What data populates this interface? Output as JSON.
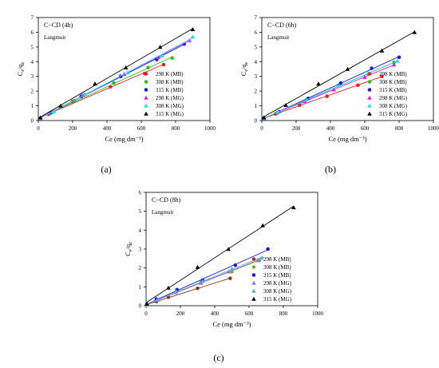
{
  "figure": {
    "panels": [
      "(a)",
      "(b)",
      "(c)"
    ]
  },
  "chart_data": [
    {
      "type": "scatter",
      "panel_label": "(a)",
      "title": "C−CD (4h)",
      "subtitle": "Langmuir",
      "xlabel": "Ce (mg dm⁻³)",
      "ylabel": "Ce/qe",
      "xlim": [
        0,
        1000
      ],
      "ylim": [
        0,
        7
      ],
      "xticks": [
        0,
        200,
        400,
        600,
        800,
        1000
      ],
      "yticks": [
        0,
        1,
        2,
        3,
        4,
        5,
        6,
        7
      ],
      "grid": false,
      "legend_position": "bottom-right",
      "series": [
        {
          "name": "298 K (MB)",
          "color": "#e8211a",
          "marker": "circle",
          "x": [
            12,
            60,
            200,
            420,
            620,
            730
          ],
          "y": [
            0.12,
            0.42,
            1.3,
            2.3,
            3.2,
            3.8
          ]
        },
        {
          "name": "308 K (MB)",
          "color": "#27c21b",
          "marker": "circle",
          "x": [
            12,
            70,
            210,
            440,
            640,
            780
          ],
          "y": [
            0.15,
            0.5,
            1.35,
            2.55,
            3.6,
            4.25
          ]
        },
        {
          "name": "315 K (MB)",
          "color": "#1a1adf",
          "marker": "circle",
          "x": [
            12,
            75,
            250,
            480,
            690,
            850
          ],
          "y": [
            0.15,
            0.55,
            1.65,
            3.0,
            4.15,
            5.2
          ]
        },
        {
          "name": "298 K (MG)",
          "color": "#e21ee2",
          "marker": "triangle",
          "x": [
            12,
            80,
            260,
            500,
            700,
            880
          ],
          "y": [
            0.16,
            0.6,
            1.75,
            3.15,
            4.3,
            5.45
          ]
        },
        {
          "name": "308 K (MG)",
          "color": "#2ed8e6",
          "marker": "triangle",
          "x": [
            12,
            90,
            270,
            520,
            720,
            900
          ],
          "y": [
            0.16,
            0.62,
            1.8,
            3.25,
            4.4,
            5.7
          ]
        },
        {
          "name": "315 K (MG)",
          "color": "#000000",
          "marker": "triangle",
          "x": [
            12,
            130,
            330,
            510,
            710,
            900
          ],
          "y": [
            0.2,
            1.0,
            2.5,
            3.6,
            5.0,
            6.2
          ]
        }
      ]
    },
    {
      "type": "scatter",
      "panel_label": "(b)",
      "title": "C−CD (6h)",
      "subtitle": "Langmuir",
      "xlabel": "Ce (mg dm⁻³)",
      "ylabel": "Ce/qe",
      "xlim": [
        0,
        1000
      ],
      "ylim": [
        0,
        7
      ],
      "xticks": [
        0,
        200,
        400,
        600,
        800,
        1000
      ],
      "yticks": [
        0,
        1,
        2,
        3,
        4,
        5,
        6,
        7
      ],
      "grid": false,
      "legend_position": "bottom-right",
      "series": [
        {
          "name": "298 K (MB)",
          "color": "#e8211a",
          "marker": "circle",
          "x": [
            12,
            80,
            220,
            380,
            560,
            700
          ],
          "y": [
            0.13,
            0.45,
            1.05,
            1.65,
            2.4,
            3.0
          ]
        },
        {
          "name": "308 K (MB)",
          "color": "#27c21b",
          "marker": "circle",
          "x": [
            12,
            90,
            260,
            450,
            620,
            770
          ],
          "y": [
            0.15,
            0.52,
            1.4,
            2.4,
            3.15,
            3.95
          ]
        },
        {
          "name": "315 K (MB)",
          "color": "#1a1adf",
          "marker": "circle",
          "x": [
            12,
            100,
            270,
            460,
            640,
            800
          ],
          "y": [
            0.16,
            0.6,
            1.5,
            2.55,
            3.55,
            4.3
          ]
        },
        {
          "name": "298 K (MG)",
          "color": "#e21ee2",
          "marker": "triangle",
          "x": [
            12,
            90,
            250,
            420,
            600,
            770
          ],
          "y": [
            0.15,
            0.55,
            1.3,
            2.1,
            2.95,
            3.8
          ]
        },
        {
          "name": "308 K (MG)",
          "color": "#2ed8e6",
          "marker": "triangle",
          "x": [
            12,
            95,
            260,
            450,
            620,
            790
          ],
          "y": [
            0.16,
            0.58,
            1.4,
            2.35,
            3.2,
            4.05
          ]
        },
        {
          "name": "315 K (MG)",
          "color": "#000000",
          "marker": "triangle",
          "x": [
            12,
            140,
            330,
            500,
            700,
            890
          ],
          "y": [
            0.2,
            1.05,
            2.5,
            3.5,
            4.75,
            6.0
          ]
        }
      ]
    },
    {
      "type": "scatter",
      "panel_label": "(c)",
      "title": "C−CD (8h)",
      "subtitle": "Langmuir",
      "xlabel": "Ce (mg dm⁻³)",
      "ylabel": "Ce/qe",
      "xlim": [
        0,
        1000
      ],
      "ylim": [
        0,
        6
      ],
      "xticks": [
        0,
        200,
        400,
        600,
        800,
        1000
      ],
      "yticks": [
        0,
        1,
        2,
        3,
        4,
        5,
        6
      ],
      "grid": false,
      "legend_position": "bottom-right",
      "series": [
        {
          "name": "298 K (MB)",
          "color": "#8b3a1a",
          "marker": "circle",
          "x": [
            5,
            60,
            130,
            300,
            490
          ],
          "y": [
            0.05,
            0.22,
            0.45,
            0.92,
            1.45
          ]
        },
        {
          "name": "308 K (MB)",
          "color": "#6fb52a",
          "marker": "circle",
          "x": [
            5,
            70,
            180,
            320,
            500,
            660
          ],
          "y": [
            0.06,
            0.3,
            0.75,
            1.25,
            1.8,
            2.4
          ]
        },
        {
          "name": "315 K (MB)",
          "color": "#1a1adf",
          "marker": "circle",
          "x": [
            5,
            60,
            180,
            330,
            520,
            710
          ],
          "y": [
            0.07,
            0.35,
            0.85,
            1.35,
            2.15,
            3.0
          ]
        },
        {
          "name": "298 K (MG)",
          "color": "#a070d0",
          "marker": "triangle",
          "x": [
            5,
            65,
            170,
            320,
            480,
            650
          ],
          "y": [
            0.06,
            0.3,
            0.7,
            1.2,
            1.8,
            2.4
          ]
        },
        {
          "name": "308 K (MG)",
          "color": "#5fa8e8",
          "marker": "triangle",
          "x": [
            5,
            70,
            175,
            330,
            500,
            675
          ],
          "y": [
            0.06,
            0.32,
            0.75,
            1.3,
            1.95,
            2.55
          ]
        },
        {
          "name": "315 K (MG)",
          "color": "#000000",
          "marker": "triangle",
          "x": [
            5,
            130,
            300,
            480,
            680,
            860
          ],
          "y": [
            0.1,
            0.95,
            2.05,
            3.0,
            4.25,
            5.2
          ]
        }
      ]
    }
  ]
}
